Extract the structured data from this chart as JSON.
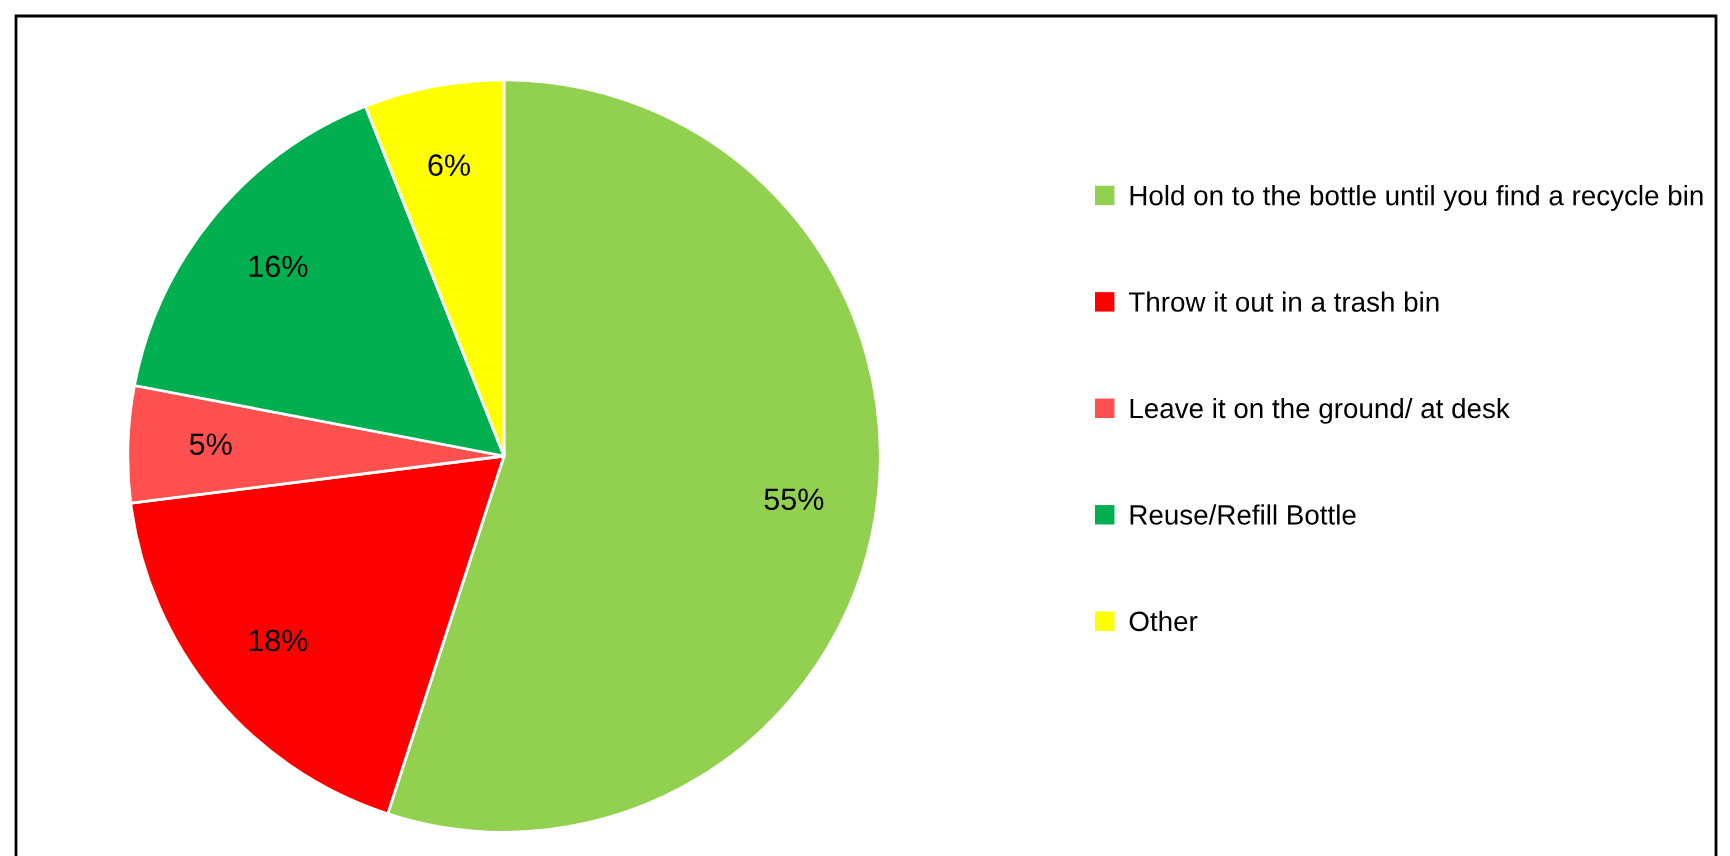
{
  "chart_data": {
    "type": "pie",
    "categories": [
      "Hold on to the bottle until you find a recycle bin",
      "Throw it out in a trash bin",
      "Leave it on the ground/ at desk",
      "Reuse/Refill Bottle",
      "Other"
    ],
    "values": [
      55,
      18,
      5,
      16,
      6
    ],
    "colors": [
      "#92d050",
      "#ff0000",
      "#ff5050",
      "#00b050",
      "#ffff00"
    ],
    "value_labels": [
      "55%",
      "18%",
      "5%",
      "16%",
      "6%"
    ],
    "legend": "right"
  }
}
